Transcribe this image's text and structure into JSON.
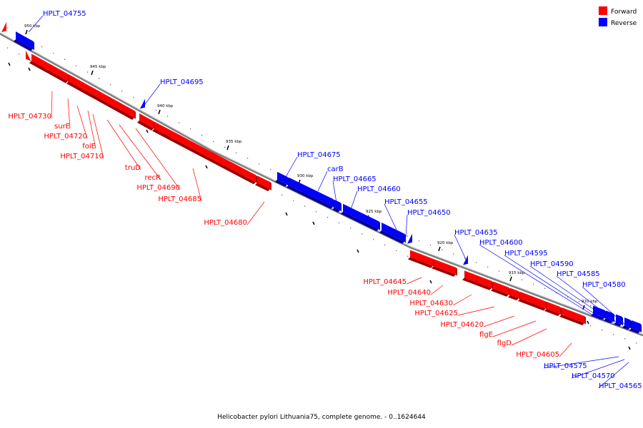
{
  "colors": {
    "forward": "#ff0000",
    "reverse": "#0000ff",
    "axis": "#777777"
  },
  "legend": {
    "forward": "Forward",
    "reverse": "Reverse"
  },
  "caption": "Helicobacter pylori Lithuania75, complete genome. - 0..1624644",
  "ticks": [
    "950 kbp",
    "945 kbp",
    "940 kbp",
    "935 kbp",
    "930 kbp",
    "925 kbp",
    "920 kbp",
    "915 kbp",
    "910 kbp"
  ],
  "genes_forward": [
    "HPLT_04730",
    "surE",
    "HPLT_04720",
    "folE",
    "HPLT_04710",
    "truD",
    "recR",
    "HPLT_04690",
    "HPLT_04685",
    "HPLT_04680",
    "HPLT_04645",
    "HPLT_04640",
    "HPLT_04630",
    "HPLT_04625",
    "HPLT_04620",
    "flgE",
    "flgD",
    "HPLT_04605"
  ],
  "genes_reverse": [
    "HPLT_04755",
    "HPLT_04695",
    "HPLT_04675",
    "carB",
    "HPLT_04665",
    "HPLT_04660",
    "HPLT_04655",
    "HPLT_04650",
    "HPLT_04635",
    "HPLT_04600",
    "HPLT_04595",
    "HPLT_04590",
    "HPLT_04585",
    "HPLT_04580",
    "HPLT_04575",
    "HPLT_04570",
    "HPLT_04565"
  ]
}
